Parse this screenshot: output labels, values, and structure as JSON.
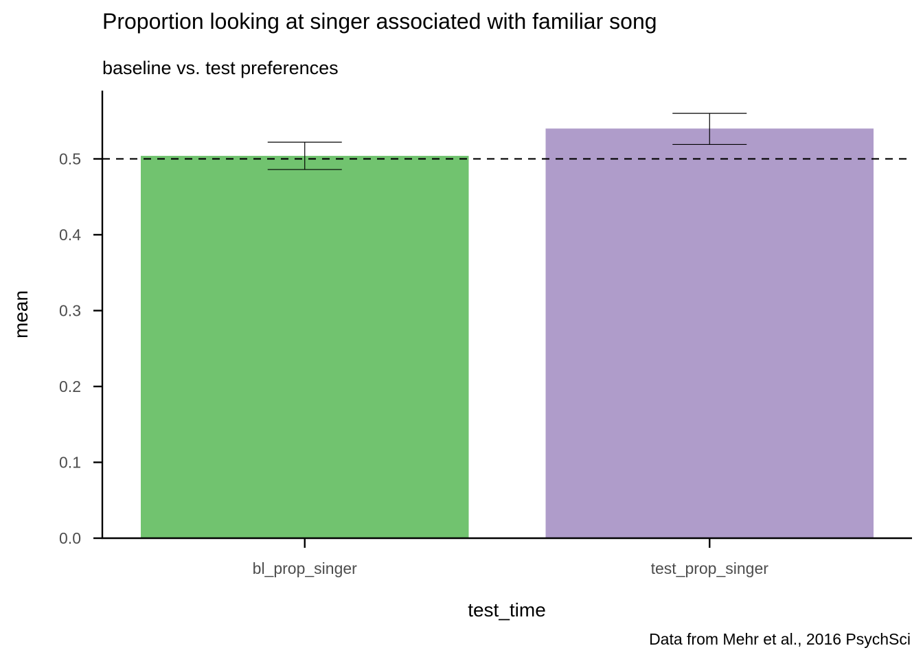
{
  "chart_data": {
    "type": "bar",
    "title": "Proportion looking at singer associated with familiar song",
    "subtitle": "baseline vs. test preferences",
    "caption": "Data from Mehr et al., 2016 PsychSci",
    "xlabel": "test_time",
    "ylabel": "mean",
    "categories": [
      "bl_prop_singer",
      "test_prop_singer"
    ],
    "values": [
      0.504,
      0.54
    ],
    "error_low": [
      0.486,
      0.519
    ],
    "error_high": [
      0.522,
      0.56
    ],
    "colors": [
      "#71c36f",
      "#af9cca"
    ],
    "reference_line": 0.5,
    "ylim": [
      0,
      0.59
    ],
    "yticks": [
      0.0,
      0.1,
      0.2,
      0.3,
      0.4,
      0.5
    ],
    "ytick_labels": [
      "0.0",
      "0.1",
      "0.2",
      "0.3",
      "0.4",
      "0.5"
    ],
    "grid": false,
    "legend": "none"
  }
}
